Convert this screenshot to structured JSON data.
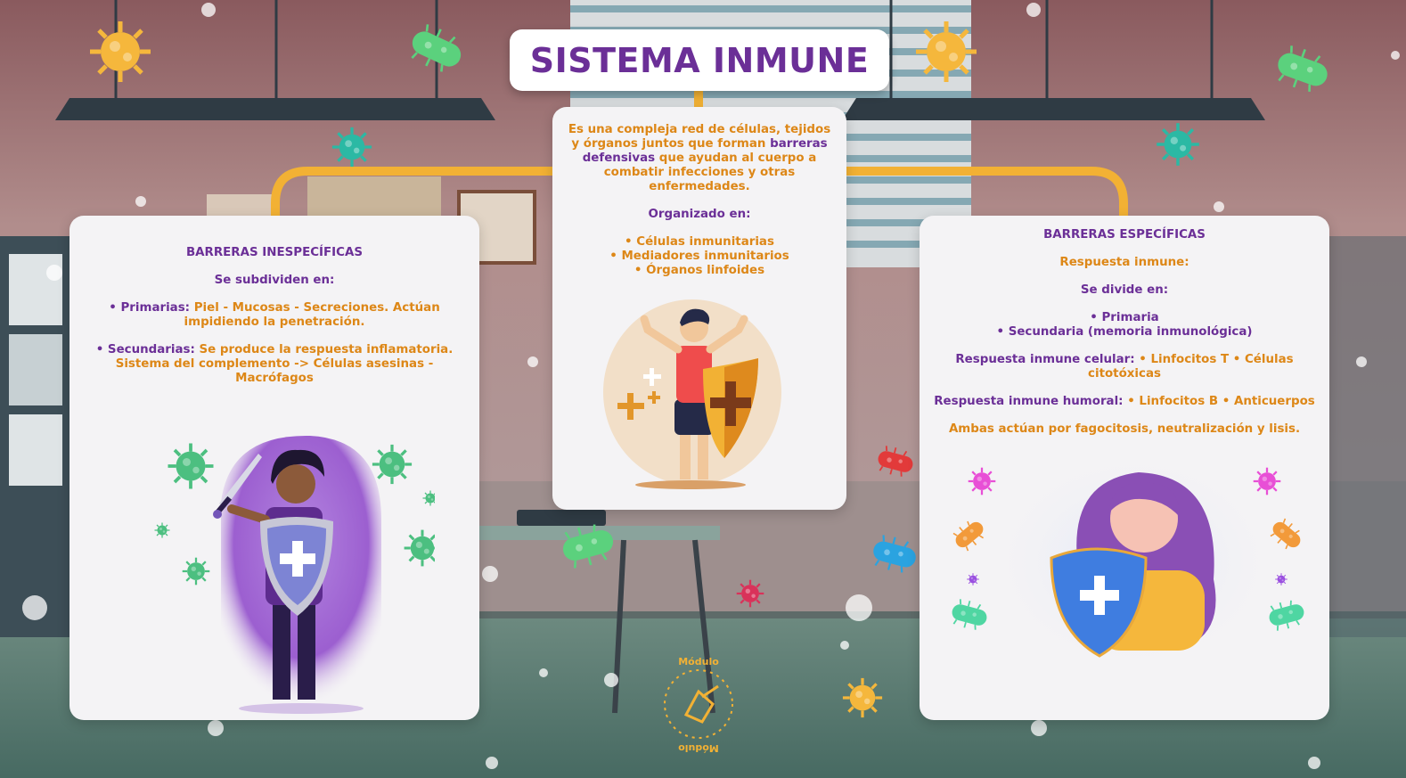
{
  "title": "SISTEMA INMUNE",
  "center": {
    "intro_a": "Es una compleja red de células, tejidos y órganos juntos que forman ",
    "intro_highlight": "barreras defensivas",
    "intro_b": " que ayudan al cuerpo a combatir infecciones y otras enfermedades.",
    "organized_label": "Organizado en:",
    "items": [
      "• Células inmunitarias",
      "• Mediadores inmunitarios",
      "• Órganos linfoides"
    ]
  },
  "left": {
    "heading": "BARRERAS INESPECÍFICAS",
    "subdivide_label": "Se subdividen en:",
    "primary_label": "• Primarias: ",
    "primary_text": "Piel - Mucosas - Secreciones. Actúan impidiendo la penetración.",
    "secondary_label": "• Secundarias: ",
    "secondary_text": "Se produce la respuesta inflamatoria. Sistema del complemento -> Células asesinas - Macrófagos"
  },
  "right": {
    "heading": "BARRERAS ESPECÍFICAS",
    "response_label": "Respuesta inmune:",
    "divide_label": "Se divide en:",
    "types": [
      "• Primaria",
      "• Secundaria (memoria inmunológica)"
    ],
    "cellular_label": "Respuesta inmune celular: ",
    "cellular_text": "• Linfocitos T • Células citotóxicas",
    "humoral_label": "Respuesta inmune humoral: ",
    "humoral_text": "• Linfocitos B • Anticuerpos",
    "both_text": "Ambas actúan por fagocitosis, neutralización y lisis."
  },
  "logo": {
    "text": "Módulo"
  },
  "colors": {
    "purple": "#6b2f97",
    "orange": "#dd8717",
    "connector": "#f2b134",
    "card": "#f4f3f5"
  },
  "icons": [
    "virus-icon",
    "bacteria-icon",
    "shield-icon",
    "sword-icon",
    "plus-icon"
  ]
}
